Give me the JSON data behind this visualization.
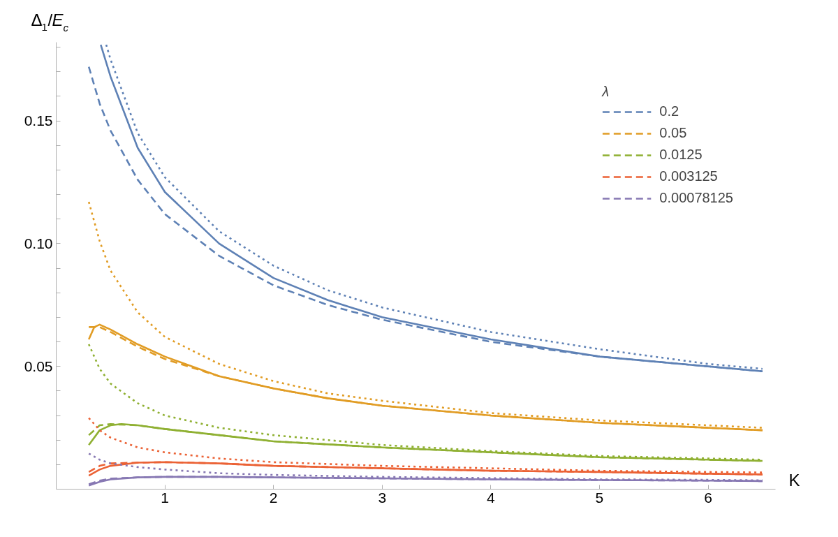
{
  "chart_data": {
    "type": "line",
    "xlabel": "K",
    "ylabel": "Δ$_{1}$/E$_{c}$",
    "legend_title": "λ",
    "legend": "top right",
    "grid": false,
    "xlim": [
      0,
      6.62
    ],
    "ylim": [
      0,
      0.182
    ],
    "xticks": [
      1,
      2,
      3,
      4,
      5,
      6
    ],
    "yticks": [
      {
        "value": 0.01,
        "label": null
      },
      {
        "value": 0.02,
        "label": null
      },
      {
        "value": 0.03,
        "label": null
      },
      {
        "value": 0.04,
        "label": null
      },
      0.05,
      {
        "value": 0.06,
        "label": null
      },
      {
        "value": 0.07,
        "label": null
      },
      {
        "value": 0.08,
        "label": null
      },
      {
        "value": 0.09,
        "label": null
      },
      {
        "value": 0.1,
        "label": "0.10"
      },
      {
        "value": 0.11,
        "label": null
      },
      {
        "value": 0.12,
        "label": null
      },
      {
        "value": 0.13,
        "label": null
      },
      {
        "value": 0.14,
        "label": null
      },
      0.15,
      {
        "value": 0.16,
        "label": null
      },
      {
        "value": 0.17,
        "label": null
      },
      {
        "value": 0.18,
        "label": null
      }
    ],
    "series": [
      {
        "name": "0.2",
        "color": "#5e81b5",
        "line_style": "dashed",
        "x": [
          0.3,
          0.4,
          0.5,
          0.75,
          1,
          1.5,
          2,
          2.5,
          3,
          4,
          5,
          6,
          6.5
        ],
        "values": [
          0.172,
          0.157,
          0.146,
          0.126,
          0.112,
          0.095,
          0.083,
          0.075,
          0.069,
          0.06,
          0.054,
          0.05,
          0.048
        ]
      },
      {
        "name": "0.05",
        "color": "#e19c24",
        "line_style": "dashed",
        "x": [
          0.3,
          0.4,
          0.5,
          0.75,
          1,
          1.5,
          2,
          2.5,
          3,
          4,
          5,
          6,
          6.5
        ],
        "values": [
          0.066,
          0.066,
          0.064,
          0.058,
          0.053,
          0.046,
          0.041,
          0.037,
          0.034,
          0.03,
          0.027,
          0.025,
          0.024
        ]
      },
      {
        "name": "0.0125",
        "color": "#8fb032",
        "line_style": "dashed",
        "x": [
          0.3,
          0.4,
          0.5,
          0.75,
          1,
          1.5,
          2,
          3,
          4,
          5,
          6,
          6.5
        ],
        "values": [
          0.022,
          0.026,
          0.0265,
          0.026,
          0.0245,
          0.022,
          0.0195,
          0.017,
          0.015,
          0.013,
          0.012,
          0.0115
        ]
      },
      {
        "name": "0.003125",
        "color": "#eb6235",
        "line_style": "dashed",
        "x": [
          0.3,
          0.4,
          0.5,
          0.75,
          1,
          1.5,
          2,
          3,
          4,
          5,
          6,
          6.5
        ],
        "values": [
          0.007,
          0.0095,
          0.0105,
          0.0108,
          0.011,
          0.0105,
          0.0095,
          0.0085,
          0.0075,
          0.007,
          0.0063,
          0.006
        ]
      },
      {
        "name": "0.00078125",
        "color": "#8778b3",
        "line_style": "dashed",
        "x": [
          0.3,
          0.4,
          0.5,
          0.75,
          1,
          1.5,
          2,
          3,
          4,
          5,
          6,
          6.5
        ],
        "values": [
          0.002,
          0.0035,
          0.0043,
          0.0048,
          0.005,
          0.005,
          0.0048,
          0.0044,
          0.004,
          0.0037,
          0.0035,
          0.0033
        ]
      },
      {
        "color": "#5e81b5",
        "line_style": "solid",
        "x": [
          0.41,
          0.5,
          0.75,
          1,
          1.5,
          2,
          2.5,
          3,
          4,
          5,
          6,
          6.5
        ],
        "values": [
          0.181,
          0.168,
          0.139,
          0.121,
          0.1,
          0.086,
          0.077,
          0.07,
          0.061,
          0.054,
          0.05,
          0.048
        ]
      },
      {
        "color": "#e19c24",
        "line_style": "solid",
        "x": [
          0.3,
          0.35,
          0.4,
          0.5,
          0.75,
          1,
          1.5,
          2,
          2.5,
          3,
          4,
          5,
          6,
          6.5
        ],
        "values": [
          0.061,
          0.066,
          0.067,
          0.065,
          0.059,
          0.054,
          0.046,
          0.041,
          0.037,
          0.034,
          0.03,
          0.027,
          0.025,
          0.024
        ]
      },
      {
        "color": "#8fb032",
        "line_style": "solid",
        "x": [
          0.3,
          0.4,
          0.5,
          0.6,
          0.75,
          1,
          1.5,
          2,
          3,
          4,
          5,
          6,
          6.5
        ],
        "values": [
          0.018,
          0.024,
          0.026,
          0.0265,
          0.026,
          0.0245,
          0.022,
          0.0195,
          0.017,
          0.015,
          0.013,
          0.012,
          0.0115
        ]
      },
      {
        "color": "#eb6235",
        "line_style": "solid",
        "x": [
          0.3,
          0.4,
          0.5,
          0.75,
          1,
          1.5,
          2,
          3,
          4,
          5,
          6,
          6.5
        ],
        "values": [
          0.0055,
          0.008,
          0.0095,
          0.0108,
          0.011,
          0.0105,
          0.0095,
          0.0085,
          0.0075,
          0.007,
          0.0063,
          0.006
        ]
      },
      {
        "color": "#8778b3",
        "line_style": "solid",
        "x": [
          0.3,
          0.4,
          0.5,
          0.75,
          1,
          1.5,
          2,
          3,
          4,
          5,
          6,
          6.5
        ],
        "values": [
          0.0015,
          0.003,
          0.004,
          0.0048,
          0.005,
          0.005,
          0.0048,
          0.0044,
          0.004,
          0.0037,
          0.0035,
          0.0033
        ]
      },
      {
        "color": "#5e81b5",
        "line_style": "dotted",
        "x": [
          0.46,
          0.5,
          0.75,
          1,
          1.5,
          2,
          2.5,
          3,
          4,
          5,
          6,
          6.5
        ],
        "values": [
          0.181,
          0.175,
          0.145,
          0.127,
          0.105,
          0.091,
          0.081,
          0.074,
          0.064,
          0.057,
          0.051,
          0.049
        ]
      },
      {
        "color": "#e19c24",
        "line_style": "dotted",
        "x": [
          0.3,
          0.4,
          0.5,
          0.75,
          1,
          1.5,
          2,
          2.5,
          3,
          4,
          5,
          6,
          6.5
        ],
        "values": [
          0.117,
          0.101,
          0.089,
          0.072,
          0.062,
          0.051,
          0.044,
          0.039,
          0.036,
          0.031,
          0.028,
          0.026,
          0.025
        ]
      },
      {
        "color": "#8fb032",
        "line_style": "dotted",
        "x": [
          0.3,
          0.4,
          0.5,
          0.75,
          1,
          1.5,
          2,
          3,
          4,
          5,
          6,
          6.5
        ],
        "values": [
          0.059,
          0.049,
          0.043,
          0.035,
          0.03,
          0.025,
          0.022,
          0.018,
          0.0155,
          0.0135,
          0.0125,
          0.012
        ]
      },
      {
        "color": "#eb6235",
        "line_style": "dotted",
        "x": [
          0.3,
          0.4,
          0.5,
          0.75,
          1,
          1.5,
          2,
          3,
          4,
          5,
          6,
          6.5
        ],
        "values": [
          0.029,
          0.024,
          0.021,
          0.017,
          0.015,
          0.0125,
          0.011,
          0.0095,
          0.0085,
          0.0075,
          0.007,
          0.0068
        ]
      },
      {
        "color": "#8778b3",
        "line_style": "dotted",
        "x": [
          0.3,
          0.4,
          0.5,
          0.75,
          1,
          1.5,
          2,
          3,
          4,
          5,
          6,
          6.5
        ],
        "values": [
          0.0145,
          0.012,
          0.0105,
          0.009,
          0.008,
          0.0065,
          0.0058,
          0.005,
          0.0045,
          0.004,
          0.0038,
          0.0036
        ]
      }
    ]
  }
}
